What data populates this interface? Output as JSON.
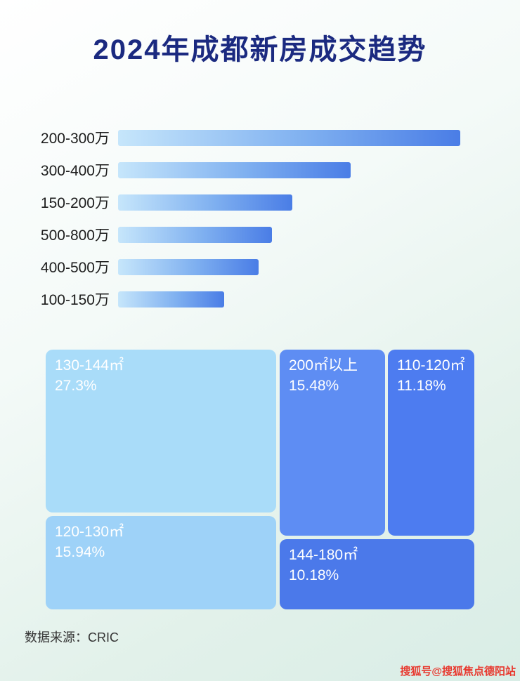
{
  "page": {
    "title": "2024年成都新房成交趋势",
    "source": "数据来源：CRIC",
    "watermark": "搜狐号@搜狐焦点德阳站"
  },
  "colors": {
    "title": "#1b2a80",
    "bar_gradient_start": "#c6e6fb",
    "bar_gradient_end": "#4a7de6",
    "watermark": "#e8392f",
    "background_top": "#ffffff",
    "background_bottom": "#d9ede6"
  },
  "chart_data": [
    {
      "type": "bar",
      "orientation": "horizontal",
      "title": "2024年成都新房成交趋势",
      "categories": [
        "200-300万",
        "300-400万",
        "150-200万",
        "500-800万",
        "400-500万",
        "100-150万"
      ],
      "values": [
        100,
        68,
        51,
        45,
        41,
        31
      ],
      "note": "无数值轴与数据标签，条长为相对估值（最长条=100）",
      "xlabel": "",
      "ylabel": "",
      "legend": "none",
      "grid": false
    },
    {
      "type": "treemap",
      "title": "",
      "blocks": [
        {
          "label": "130-144㎡",
          "percent": "27.3%",
          "color": "#a9dcf9"
        },
        {
          "label": "200㎡以上",
          "percent": "15.48%",
          "color": "#5e8df3"
        },
        {
          "label": "110-120㎡",
          "percent": "11.18%",
          "color": "#4d7cf0"
        },
        {
          "label": "120-130㎡",
          "percent": "15.94%",
          "color": "#9ed2f8"
        },
        {
          "label": "144-180㎡",
          "percent": "10.18%",
          "color": "#4b79ea"
        }
      ]
    }
  ]
}
